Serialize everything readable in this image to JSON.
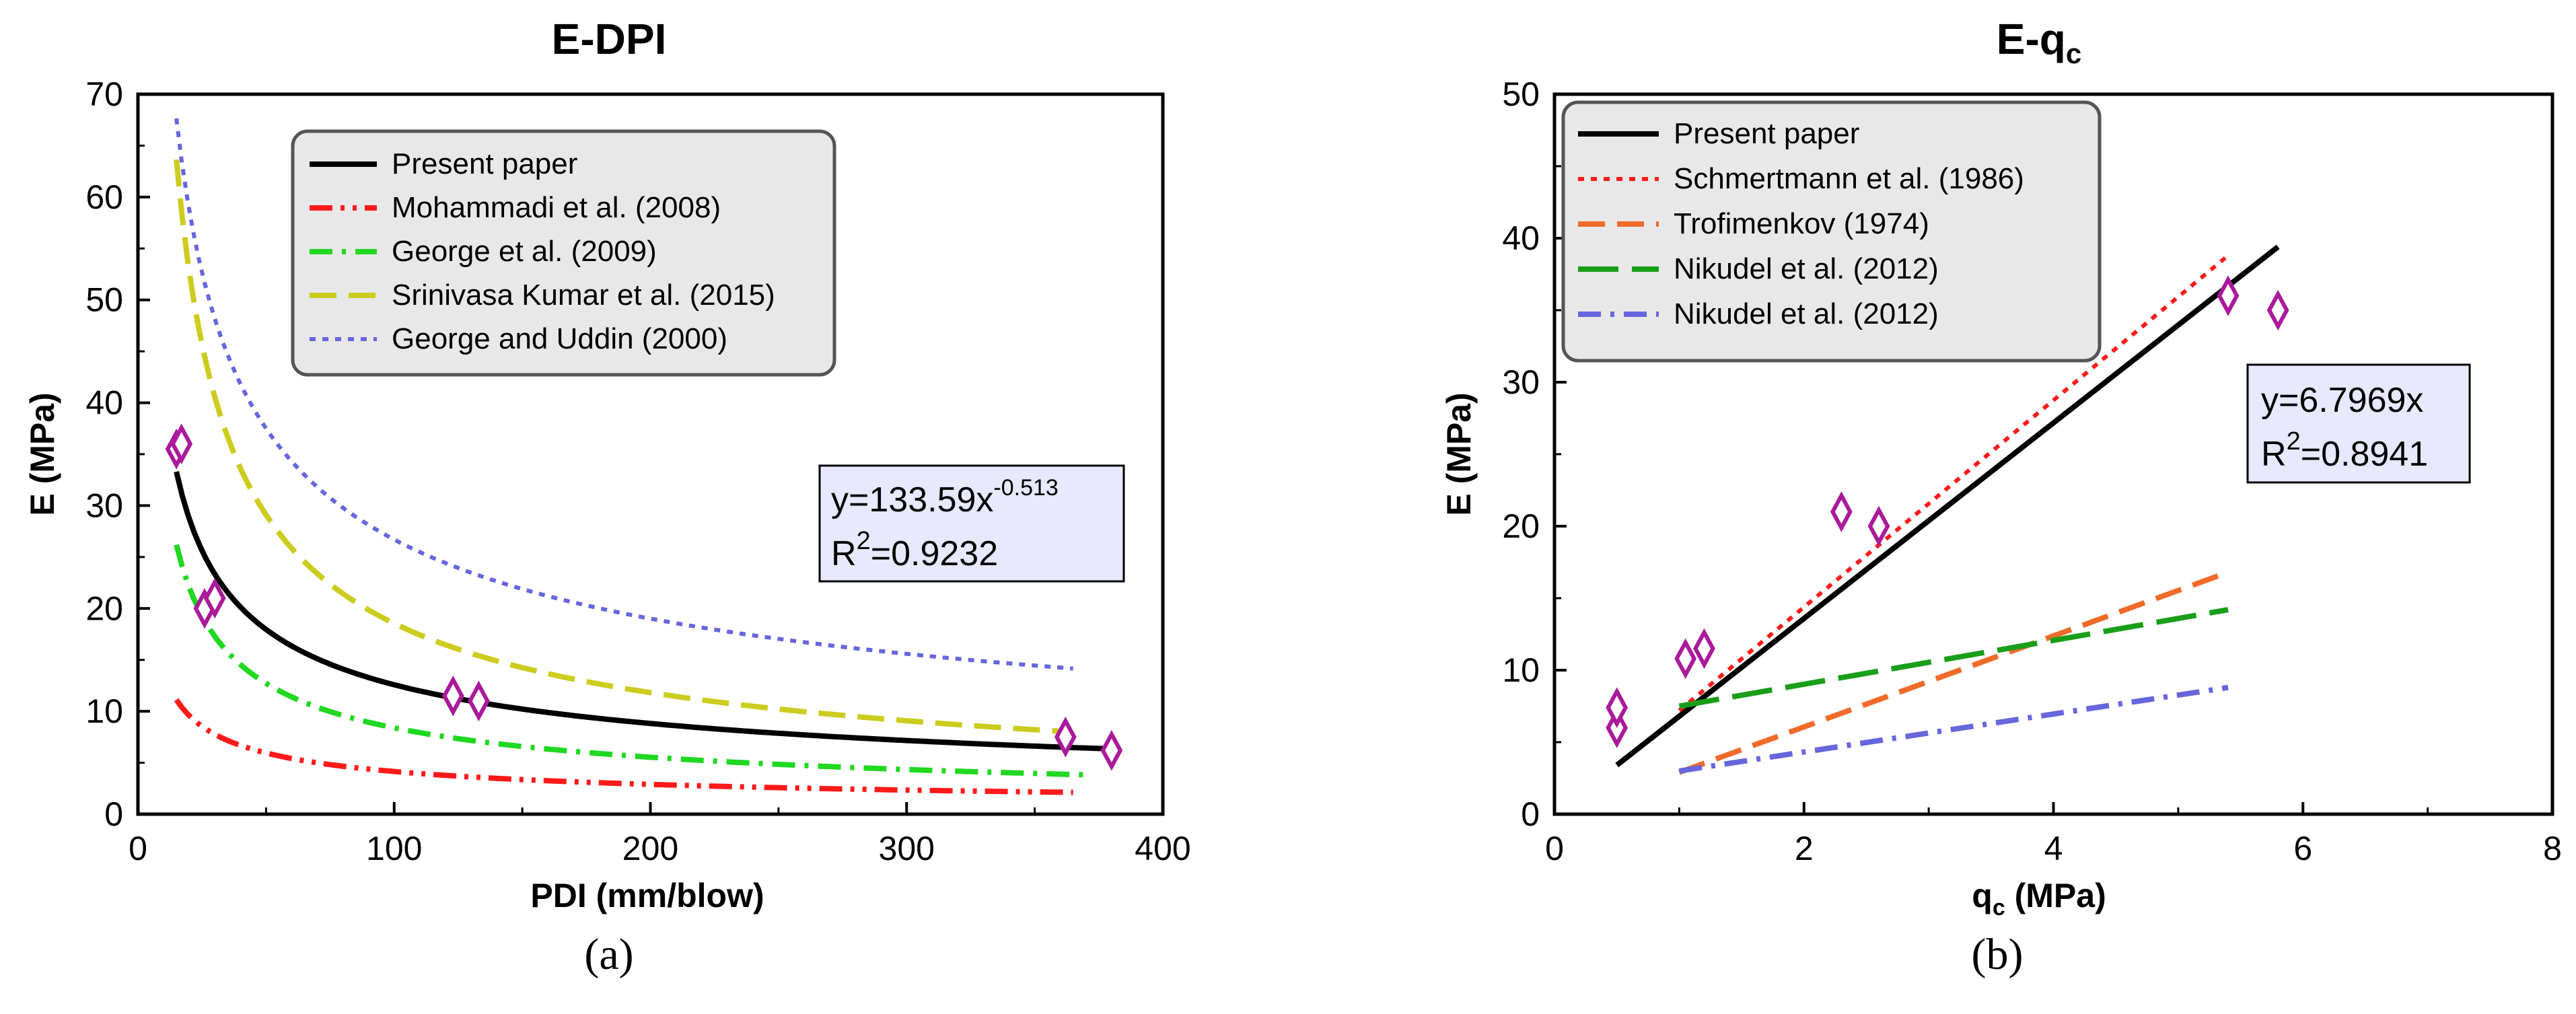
{
  "chart_data": [
    {
      "type": "line",
      "panel_label": "(a)",
      "title": "E-DPI",
      "xlabel": "PDI (mm/blow)",
      "ylabel": "E (MPa)",
      "xlim": [
        0,
        400
      ],
      "ylim": [
        0,
        70
      ],
      "xticks": [
        0,
        100,
        200,
        300,
        400
      ],
      "yticks": [
        0,
        10,
        20,
        30,
        40,
        50,
        60,
        70
      ],
      "legend_position": "top-center",
      "series": [
        {
          "name": "Present paper",
          "color": "#000000",
          "style": "solid",
          "x_range": [
            15,
            380
          ],
          "formula": {
            "kind": "power",
            "a": 133.59,
            "b": -0.513
          }
        },
        {
          "name": "Mohammadi et al. (2008)",
          "color": "#ff1a1a",
          "style": "dash-dot-dot",
          "x_range": [
            15,
            365
          ],
          "formula": {
            "kind": "power",
            "a": 45.5,
            "b": -0.52
          }
        },
        {
          "name": "George et al. (2009)",
          "color": "#1fd81f",
          "style": "dash-dot",
          "x_range": [
            15,
            370
          ],
          "formula": {
            "kind": "power",
            "a": 133,
            "b": -0.6
          }
        },
        {
          "name": "Srinivasa Kumar et al. (2015)",
          "color": "#cccc1f",
          "style": "dashed",
          "x_range": [
            15,
            360
          ],
          "formula": {
            "kind": "power",
            "a": 370,
            "b": -0.65
          }
        },
        {
          "name": "George and Uddin (2000)",
          "color": "#6666dd",
          "style": "dotted",
          "x_range": [
            15,
            365
          ],
          "formula": {
            "kind": "power",
            "a": 255,
            "b": -0.49
          }
        }
      ],
      "points": {
        "color": "#aa1a9a",
        "x": [
          15,
          17,
          26,
          30,
          123,
          133,
          362,
          380
        ],
        "y": [
          35.5,
          36,
          20,
          21,
          11.5,
          11,
          7.5,
          6.2
        ]
      },
      "annotation": {
        "eq_prefix": "y=133.59x",
        "eq_exp": "-0.513",
        "r2_prefix": "R",
        "r2_sup": "2",
        "r2_value": "=0.9232"
      }
    },
    {
      "type": "line",
      "panel_label": "(b)",
      "title_main": "E-q",
      "title_sub": "c",
      "xlabel_main": "q",
      "xlabel_sub": "c",
      "xlabel_rest": " (MPa)",
      "ylabel": "E (MPa)",
      "xlim": [
        0,
        8
      ],
      "ylim": [
        0,
        50
      ],
      "xticks": [
        0,
        2,
        4,
        6,
        8
      ],
      "yticks": [
        0,
        10,
        20,
        30,
        40,
        50
      ],
      "legend_position": "top-left",
      "series": [
        {
          "name": "Present paper",
          "color": "#000000",
          "style": "solid",
          "x": [
            0.5,
            5.8
          ],
          "y": [
            3.4,
            39.4
          ]
        },
        {
          "name": "Schmertmann et al. (1986)",
          "color": "#ff1a1a",
          "style": "dotted",
          "x": [
            1.0,
            5.4
          ],
          "y": [
            7.2,
            38.8
          ]
        },
        {
          "name": "Trofimenkov (1974)",
          "color": "#f06b2a",
          "style": "dashed",
          "x": [
            1.0,
            5.4
          ],
          "y": [
            2.9,
            16.8
          ]
        },
        {
          "name": "Nikudel et al. (2012)",
          "color": "#1a9e1a",
          "style": "long-dashed",
          "x": [
            1.0,
            5.4
          ],
          "y": [
            7.5,
            14.2
          ]
        },
        {
          "name": "Nikudel et al. (2012)",
          "color": "#6666dd",
          "style": "dash-dot",
          "x": [
            1.0,
            5.4
          ],
          "y": [
            3.0,
            8.8
          ]
        }
      ],
      "points": {
        "color": "#aa1a9a",
        "x": [
          0.5,
          0.5,
          1.05,
          1.2,
          2.3,
          2.6,
          5.4,
          5.8
        ],
        "y": [
          6.0,
          7.4,
          10.8,
          11.5,
          21.0,
          20.0,
          36.0,
          35.0
        ]
      },
      "annotation": {
        "eq_text": "y=6.7969x",
        "r2_prefix": "R",
        "r2_sup": "2",
        "r2_value": "=0.8941"
      }
    }
  ]
}
